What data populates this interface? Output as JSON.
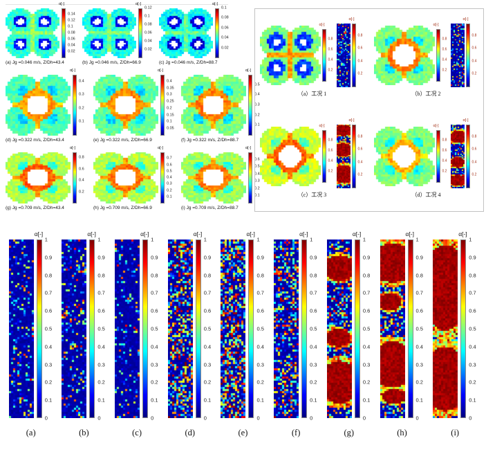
{
  "chart_data": {
    "type": "heatmap",
    "colormap": "jet",
    "value_label": "α[-]",
    "top_left": {
      "panels": [
        {
          "id": "a",
          "caption": "(a) Jg =0.046 m/s, Z/Dh=43.4",
          "cbar": {
            "label": "α[-]",
            "min": 0,
            "max": 0.16,
            "ticks": [
              "0.14",
              "0.12",
              "0.1",
              "0.08",
              "0.06",
              "0.04",
              "0.02"
            ]
          },
          "style": {
            "kind": "rods",
            "seed": 11,
            "base": 0.42,
            "halo": 0.12,
            "halo_r": 0.3,
            "rod_r": 0.15,
            "ridge": 0.52,
            "noise": 0.12
          }
        },
        {
          "id": "b",
          "caption": "(b) Jg =0.046 m/s, Z/Dh=66.9",
          "cbar": {
            "label": "α[-]",
            "min": 0,
            "max": 0.12,
            "ticks": [
              "0.12",
              "0.1",
              "0.08",
              "0.06",
              "0.04",
              "0.02"
            ]
          },
          "style": {
            "kind": "rods",
            "seed": 12,
            "base": 0.4,
            "halo": 0.12,
            "halo_r": 0.3,
            "rod_r": 0.15,
            "ridge": 0.5,
            "noise": 0.12
          }
        },
        {
          "id": "c",
          "caption": "(c) Jg =0.046 m/s, Z/Dh=88.7",
          "cbar": {
            "label": "α[-]",
            "min": 0,
            "max": 0.1,
            "ticks": [
              "0.1",
              "0.08",
              "0.06",
              "0.04",
              "0.02"
            ]
          },
          "style": {
            "kind": "rods",
            "seed": 13,
            "base": 0.38,
            "halo": 0.1,
            "halo_r": 0.31,
            "rod_r": 0.15,
            "ridge": 0.48,
            "noise": 0.12
          }
        },
        {
          "id": "d",
          "caption": "(d) Jg =0.322 m/s, Z/Dh=43.4",
          "cbar": {
            "label": "α[-]",
            "min": 0,
            "max": 0.45,
            "ticks": [
              "0.4",
              "0.3",
              "0.2",
              "0.1"
            ]
          },
          "style": {
            "kind": "hole",
            "seed": 21,
            "hole_r": 0.4,
            "ring": 0.72,
            "lobe": 0.45,
            "dip": 0.33,
            "ridge": 0.68,
            "noise": 0.1
          }
        },
        {
          "id": "e",
          "caption": "(e) Jg =0.322 m/s, Z/Dh=66.9",
          "cbar": {
            "label": "α[-]",
            "min": 0,
            "max": 0.45,
            "ticks": [
              "0.4",
              "0.35",
              "0.3",
              "0.25",
              "0.2",
              "0.15",
              "0.1",
              "0.05"
            ]
          },
          "style": {
            "kind": "hole",
            "seed": 22,
            "hole_r": 0.4,
            "ring": 0.74,
            "lobe": 0.47,
            "dip": 0.34,
            "ridge": 0.7,
            "noise": 0.1
          }
        },
        {
          "id": "f",
          "caption": "(f) Jg =0.322 m/s, Z/Dh=88.7",
          "cbar": {
            "label": "α[-]",
            "min": 0,
            "max": 0.6,
            "ticks": [
              "0.5",
              "0.4",
              "0.3",
              "0.2",
              "0.1"
            ]
          },
          "style": {
            "kind": "hole",
            "seed": 23,
            "hole_r": 0.4,
            "ring": 0.75,
            "lobe": 0.5,
            "dip": 0.35,
            "ridge": 0.7,
            "noise": 0.1
          }
        },
        {
          "id": "g",
          "caption": "(g) Jg =0.709 m/s, Z/Dh=43.4",
          "cbar": {
            "label": "α[-]",
            "min": 0,
            "max": 0.9,
            "ticks": [
              "0.8",
              "0.6",
              "0.4",
              "0.2"
            ]
          },
          "style": {
            "kind": "hole",
            "seed": 31,
            "hole_r": 0.4,
            "ring": 0.78,
            "lobe": 0.55,
            "dip": 0.4,
            "ridge": 0.72,
            "noise": 0.1
          }
        },
        {
          "id": "h",
          "caption": "(h) Jg =0.709 m/s, Z/Dh=66.9",
          "cbar": {
            "label": "α[-]",
            "min": 0,
            "max": 0.8,
            "ticks": [
              "0.7",
              "0.6",
              "0.5",
              "0.4",
              "0.3",
              "0.2",
              "0.1"
            ]
          },
          "style": {
            "kind": "hole",
            "seed": 32,
            "hole_r": 0.4,
            "ring": 0.76,
            "lobe": 0.55,
            "dip": 0.42,
            "ridge": 0.72,
            "noise": 0.1
          }
        },
        {
          "id": "i",
          "caption": "(i) Jg =0.709 m/s, Z/Dh=88.7",
          "cbar": {
            "label": "α[-]",
            "min": 0,
            "max": 0.7,
            "ticks": [
              "0.6",
              "0.5",
              "0.4",
              "0.3",
              "0.2",
              "0.1"
            ]
          },
          "style": {
            "kind": "hole",
            "seed": 33,
            "hole_r": 0.4,
            "ring": 0.75,
            "lobe": 0.53,
            "dip": 0.4,
            "ridge": 0.7,
            "noise": 0.1
          }
        }
      ]
    },
    "top_right": {
      "cbar": {
        "label": "α[-]",
        "min": 0,
        "max": 1,
        "ticks": [
          "0.8",
          "0.6",
          "0.4",
          "0.2"
        ],
        "color": "#a12c12"
      },
      "panels": [
        {
          "id": "a",
          "caption": "（a）工况 1",
          "cross": {
            "kind": "rods",
            "seed": 41,
            "base": 0.5,
            "halo": 0.18,
            "halo_r": 0.33,
            "rod_r": 0.14,
            "ridge": 0.72,
            "noise": 0.1
          },
          "strip": {
            "kind": "strip",
            "seed": 45,
            "cols": 10,
            "rows": 48,
            "p": 0.3,
            "hi": 0.85,
            "pow": 1.6
          }
        },
        {
          "id": "b",
          "caption": "（b）工况 2",
          "cross": {
            "kind": "hole",
            "seed": 42,
            "hole_r": 0.44,
            "ring": 0.75,
            "lobe": 0.5,
            "dip": 0.35,
            "ridge": 0.7,
            "noise": 0.1
          },
          "strip": {
            "kind": "strip",
            "seed": 46,
            "cols": 10,
            "rows": 48,
            "p": 0.35,
            "hi": 0.9,
            "pow": 1.5
          }
        },
        {
          "id": "c",
          "caption": "（c）工况 3",
          "cross": {
            "kind": "hole",
            "seed": 43,
            "hole_r": 0.42,
            "ring": 0.78,
            "lobe": 0.58,
            "dip": 0.45,
            "ridge": 0.75,
            "noise": 0.1
          },
          "strip": {
            "kind": "strip",
            "seed": 47,
            "cols": 10,
            "rows": 48,
            "p": 0.4,
            "hi": 0.9,
            "pow": 1.3,
            "blobs": [
              {
                "cx": 0.5,
                "cy": 0.1,
                "rx": 0.85,
                "ry": 0.08
              },
              {
                "cx": 0.45,
                "cy": 0.4,
                "rx": 0.7,
                "ry": 0.1
              },
              {
                "cx": 0.5,
                "cy": 0.78,
                "rx": 0.85,
                "ry": 0.14
              }
            ]
          }
        },
        {
          "id": "d",
          "caption": "（d）工况 4",
          "cross": {
            "kind": "hole",
            "seed": 44,
            "hole_r": 0.42,
            "ring": 0.7,
            "lobe": 0.5,
            "dip": 0.38,
            "ridge": 0.65,
            "noise": 0.1
          },
          "strip": {
            "kind": "strip",
            "seed": 48,
            "cols": 10,
            "rows": 48,
            "p": 0.45,
            "hi": 0.9,
            "pow": 1.3,
            "blobs": [
              {
                "cx": 0.55,
                "cy": 0.2,
                "rx": 0.6,
                "ry": 0.1
              },
              {
                "cx": 0.5,
                "cy": 0.6,
                "rx": 0.5,
                "ry": 0.08
              },
              {
                "cx": 0.5,
                "cy": 0.88,
                "rx": 0.7,
                "ry": 0.08
              }
            ]
          }
        }
      ]
    },
    "bottom": {
      "cbar": {
        "label": "α[-]",
        "min": 0,
        "max": 1,
        "ticks": [
          "1",
          "0.9",
          "0.8",
          "0.7",
          "0.6",
          "0.5",
          "0.4",
          "0.3",
          "0.2",
          "0.1",
          "0"
        ]
      },
      "panels": [
        {
          "id": "a",
          "label": "(a)",
          "strip": {
            "kind": "strip",
            "seed": 101,
            "cols": 12,
            "rows": 86,
            "p": 0.2,
            "pow": 2.0,
            "hi": 0.8
          }
        },
        {
          "id": "b",
          "label": "(b)",
          "strip": {
            "kind": "strip",
            "seed": 102,
            "cols": 12,
            "rows": 86,
            "p": 0.24,
            "pow": 1.9,
            "hi": 0.85
          }
        },
        {
          "id": "c",
          "label": "(c)",
          "strip": {
            "kind": "strip",
            "seed": 103,
            "cols": 12,
            "rows": 86,
            "p": 0.18,
            "pow": 2.0,
            "hi": 0.8
          }
        },
        {
          "id": "d",
          "label": "(d)",
          "strip": {
            "kind": "strip",
            "seed": 104,
            "cols": 12,
            "rows": 86,
            "p": 0.5,
            "pow": 1.2,
            "hi": 0.95
          }
        },
        {
          "id": "e",
          "label": "(e)",
          "strip": {
            "kind": "strip",
            "seed": 105,
            "cols": 12,
            "rows": 86,
            "p": 0.55,
            "pow": 1.1,
            "hi": 0.95
          }
        },
        {
          "id": "f",
          "label": "(f)",
          "strip": {
            "kind": "strip",
            "seed": 106,
            "cols": 12,
            "rows": 86,
            "p": 0.45,
            "pow": 1.3,
            "hi": 0.9
          }
        },
        {
          "id": "g",
          "label": "(g)",
          "strip": {
            "kind": "strip",
            "seed": 107,
            "cols": 12,
            "rows": 86,
            "p": 0.4,
            "pow": 1.2,
            "hi": 0.9,
            "blobs": [
              {
                "cx": 0.5,
                "cy": 0.16,
                "rx": 0.7,
                "ry": 0.07
              },
              {
                "cx": 0.45,
                "cy": 0.55,
                "rx": 0.5,
                "ry": 0.05
              },
              {
                "cx": 0.5,
                "cy": 0.8,
                "rx": 0.85,
                "ry": 0.12
              }
            ]
          }
        },
        {
          "id": "h",
          "label": "(h)",
          "strip": {
            "kind": "strip",
            "seed": 108,
            "cols": 12,
            "rows": 86,
            "p": 0.4,
            "pow": 1.2,
            "hi": 0.9,
            "blobs": [
              {
                "cx": 0.5,
                "cy": 0.13,
                "rx": 0.9,
                "ry": 0.11
              },
              {
                "cx": 0.4,
                "cy": 0.35,
                "rx": 0.45,
                "ry": 0.05
              },
              {
                "cx": 0.5,
                "cy": 0.7,
                "rx": 0.9,
                "ry": 0.13
              },
              {
                "cx": 0.55,
                "cy": 0.88,
                "rx": 0.5,
                "ry": 0.04
              }
            ]
          }
        },
        {
          "id": "i",
          "label": "(i)",
          "strip": {
            "kind": "strip",
            "seed": 109,
            "cols": 12,
            "rows": 86,
            "p": 0.5,
            "pow": 1.1,
            "hi": 0.95,
            "blobs": [
              {
                "cx": 0.5,
                "cy": 0.27,
                "rx": 0.95,
                "ry": 0.24
              },
              {
                "cx": 0.5,
                "cy": 0.78,
                "rx": 0.95,
                "ry": 0.18
              }
            ]
          }
        }
      ]
    }
  }
}
